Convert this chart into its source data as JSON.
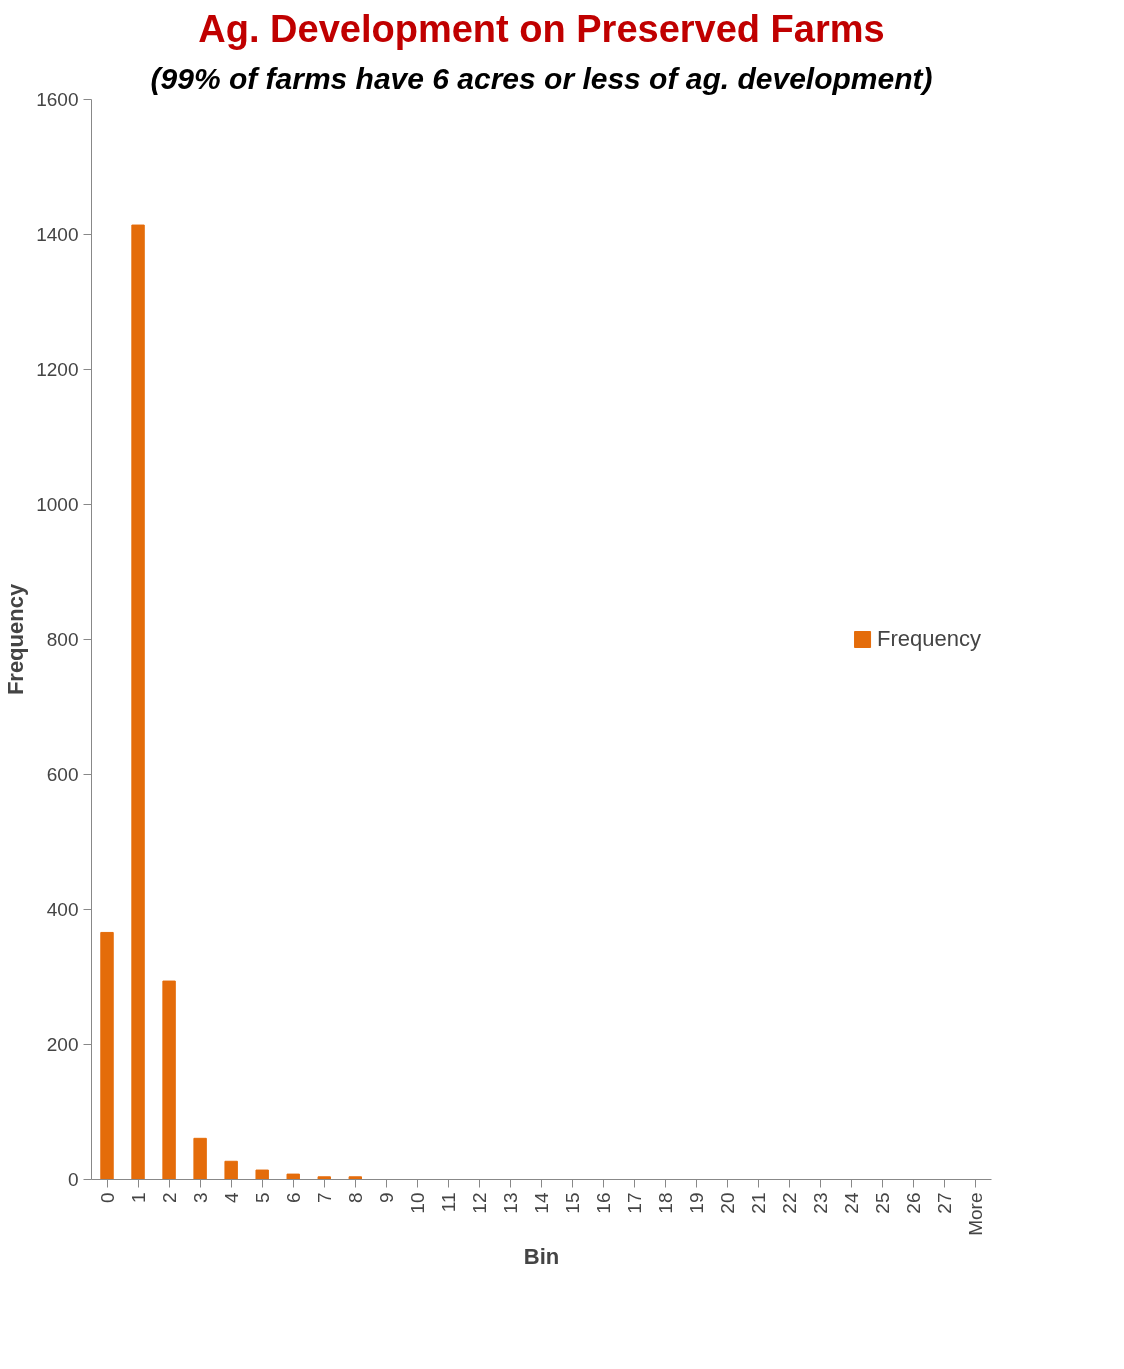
{
  "chart_data": {
    "type": "bar",
    "title": "Ag. Development on Preserved Farms",
    "subtitle": "(99% of farms have 6 acres or less of ag. development)",
    "xlabel": "Bin",
    "ylabel": "Frequency",
    "categories": [
      "0",
      "1",
      "2",
      "3",
      "4",
      "5",
      "6",
      "7",
      "8",
      "9",
      "10",
      "11",
      "12",
      "13",
      "14",
      "15",
      "16",
      "17",
      "18",
      "19",
      "20",
      "21",
      "22",
      "23",
      "24",
      "25",
      "26",
      "27",
      "More"
    ],
    "series": [
      {
        "name": "Frequency",
        "color": "#e46c0a",
        "values": [
          366,
          1414,
          294,
          61,
          27,
          14,
          8,
          4,
          4,
          0,
          0,
          0,
          0,
          0,
          0,
          0,
          0,
          0,
          0,
          0,
          0,
          0,
          0,
          0,
          0,
          0,
          0,
          0,
          0
        ]
      }
    ],
    "ylim": [
      0,
      1600
    ],
    "yticks": [
      0,
      200,
      400,
      600,
      800,
      1000,
      1200,
      1400,
      1600
    ],
    "grid": false,
    "legend": "right"
  }
}
